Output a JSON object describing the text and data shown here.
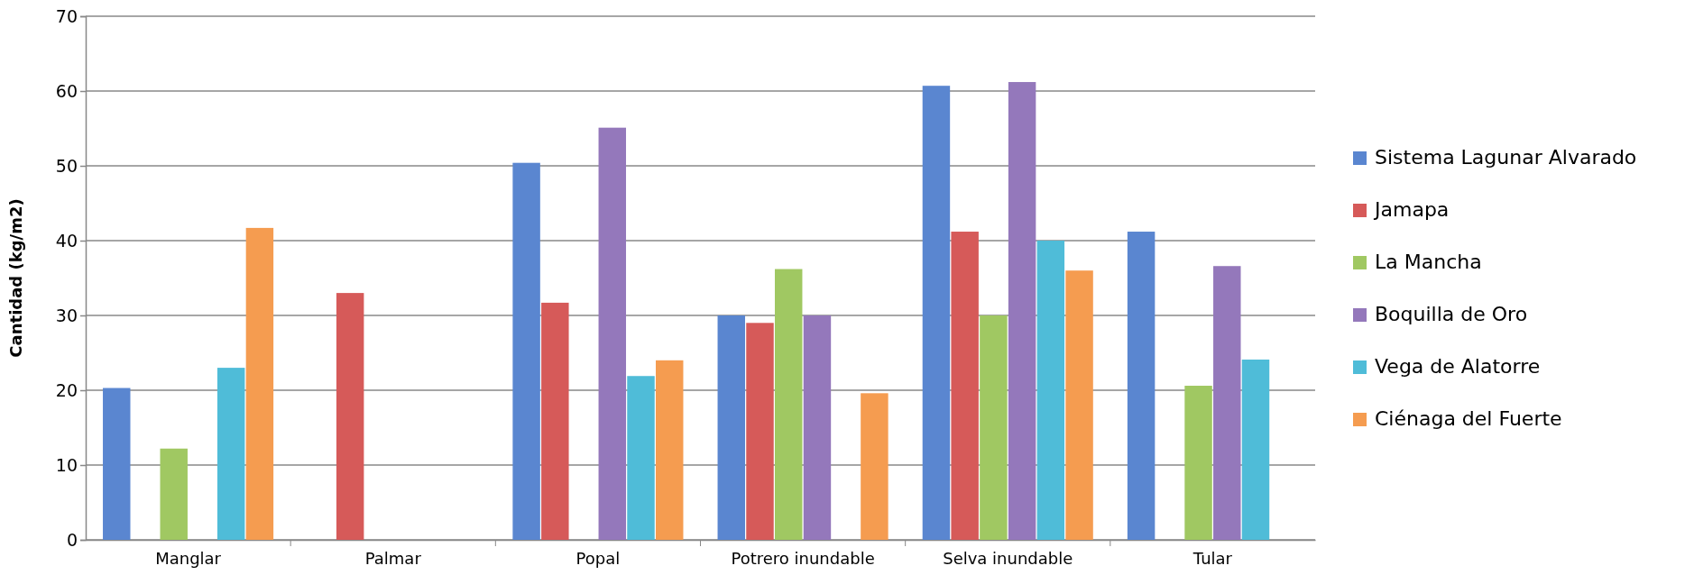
{
  "chart_data": {
    "type": "bar",
    "ylabel": "Cantidad (kg/m2)",
    "categories": [
      "Manglar",
      "Palmar",
      "Popal",
      "Potrero inundable",
      "Selva inundable",
      "Tular"
    ],
    "series": [
      {
        "name": "Sistema Lagunar Alvarado",
        "color": "#5a86d0",
        "values": [
          20.3,
          null,
          50.4,
          30,
          60.7,
          41.2
        ]
      },
      {
        "name": "Jamapa",
        "color": "#d65a59",
        "values": [
          null,
          33,
          31.7,
          29,
          41.2,
          null
        ]
      },
      {
        "name": "La Mancha",
        "color": "#a0c862",
        "values": [
          12.2,
          null,
          null,
          36.2,
          30,
          20.6
        ]
      },
      {
        "name": "Boquilla de Oro",
        "color": "#9478bb",
        "values": [
          null,
          null,
          55.1,
          30,
          61.2,
          36.6
        ]
      },
      {
        "name": "Vega de Alatorre",
        "color": "#4fbcd8",
        "values": [
          23,
          null,
          21.9,
          null,
          40,
          24.1
        ]
      },
      {
        "name": "Ciénaga del Fuerte",
        "color": "#f59c50",
        "values": [
          41.7,
          null,
          24,
          19.6,
          36,
          null
        ]
      }
    ],
    "ylim": [
      0,
      70
    ],
    "yticks": [
      0,
      10,
      20,
      30,
      40,
      50,
      60,
      70
    ],
    "grid": "y",
    "legend": "right"
  }
}
